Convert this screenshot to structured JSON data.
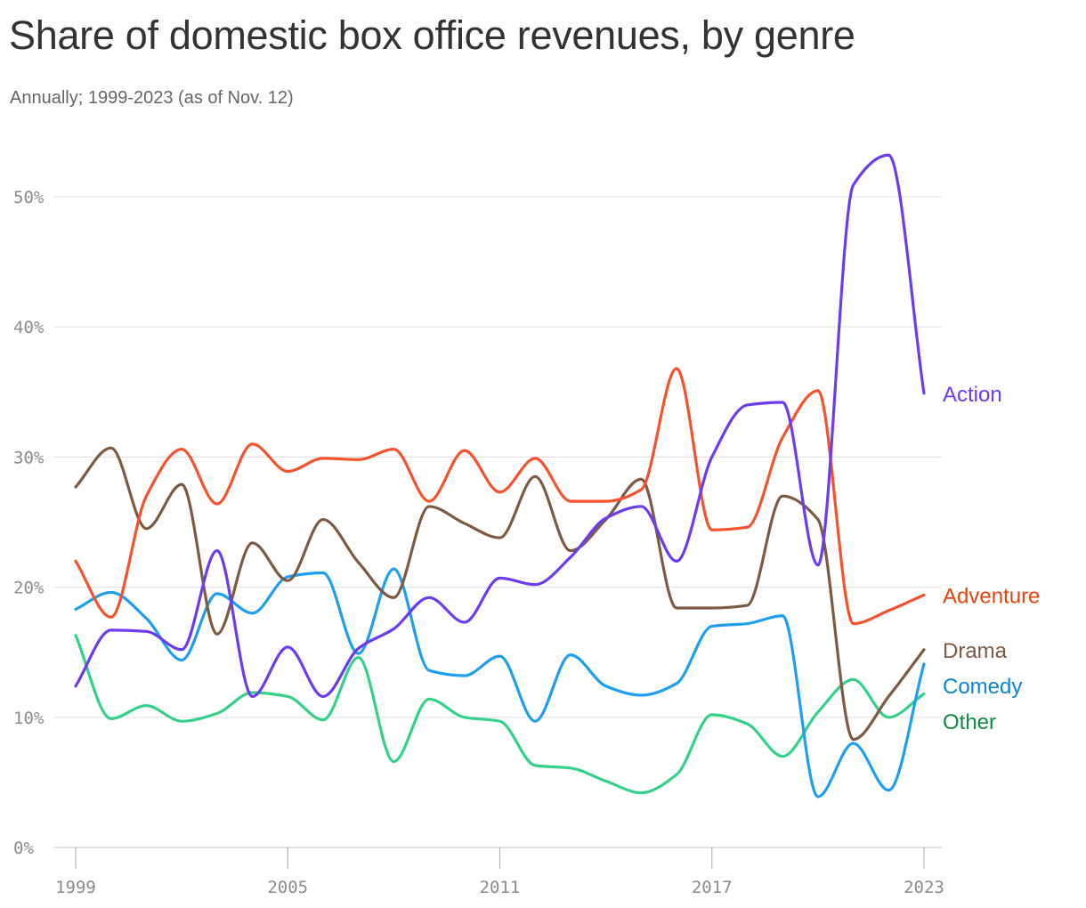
{
  "chart_data": {
    "type": "line",
    "title": "Share of domestic box office revenues, by genre",
    "subtitle": "Annually; 1999-2023 (as of Nov. 12)",
    "xlabel": "",
    "ylabel": "",
    "x": [
      1999,
      2000,
      2001,
      2002,
      2003,
      2004,
      2005,
      2006,
      2007,
      2008,
      2009,
      2010,
      2011,
      2012,
      2013,
      2014,
      2015,
      2016,
      2017,
      2018,
      2019,
      2020,
      2021,
      2022,
      2023
    ],
    "x_ticks": [
      1999,
      2005,
      2011,
      2017,
      2023
    ],
    "x_tick_labels": [
      "1999",
      "2005",
      "2011",
      "2017",
      "2023"
    ],
    "ylim": [
      0,
      50
    ],
    "y_ticks": [
      0,
      10,
      20,
      30,
      40,
      50
    ],
    "y_tick_labels": [
      "0%",
      "10%",
      "20%",
      "30%",
      "40%",
      "50%"
    ],
    "grid": true,
    "legend": "direct labels at right end of lines",
    "series": [
      {
        "name": "Action",
        "color": "#6c3cf0",
        "label_color": "#6c3cf0",
        "values": [
          12.4,
          16.7,
          16.6,
          15.2,
          22.8,
          11.6,
          15.4,
          11.6,
          15.3,
          16.8,
          19.2,
          17.3,
          20.7,
          20.2,
          22.3,
          25.3,
          26.2,
          22.0,
          30.0,
          34.0,
          34.2,
          21.7,
          50.9,
          53.2,
          34.9
        ]
      },
      {
        "name": "Adventure",
        "color": "#f6522d",
        "label_color": "#e8420f",
        "values": [
          22.0,
          17.7,
          27.0,
          30.6,
          26.4,
          31.0,
          28.9,
          29.9,
          29.8,
          30.6,
          26.6,
          30.5,
          27.3,
          29.9,
          26.6,
          26.6,
          27.5,
          36.8,
          24.4,
          24.6,
          31.5,
          35.1,
          17.2,
          18.2,
          19.4
        ]
      },
      {
        "name": "Drama",
        "color": "#7d5a44",
        "label_color": "#7d5a44",
        "values": [
          27.7,
          30.7,
          24.5,
          27.9,
          16.4,
          23.4,
          20.5,
          25.2,
          21.9,
          19.2,
          26.2,
          24.9,
          23.8,
          28.5,
          22.8,
          25.2,
          28.3,
          18.4,
          18.4,
          18.6,
          27.0,
          25.2,
          8.3,
          11.6,
          15.2
        ]
      },
      {
        "name": "Comedy",
        "color": "#1e9ff0",
        "label_color": "#0b85d8",
        "values": [
          18.3,
          19.6,
          17.6,
          14.4,
          19.5,
          18.0,
          20.8,
          21.1,
          14.9,
          21.4,
          13.6,
          13.2,
          14.7,
          9.7,
          14.8,
          12.4,
          11.7,
          12.6,
          17.0,
          17.2,
          17.8,
          3.9,
          8.0,
          4.4,
          14.1
        ]
      },
      {
        "name": "Other",
        "color": "#35d18a",
        "label_color": "#108a45",
        "values": [
          16.3,
          9.9,
          10.9,
          9.7,
          10.3,
          11.9,
          11.6,
          9.8,
          14.6,
          6.6,
          11.4,
          10.0,
          9.7,
          6.3,
          6.1,
          5.1,
          4.2,
          5.6,
          10.2,
          9.5,
          7.0,
          10.4,
          12.9,
          10.0,
          11.8
        ]
      }
    ]
  }
}
